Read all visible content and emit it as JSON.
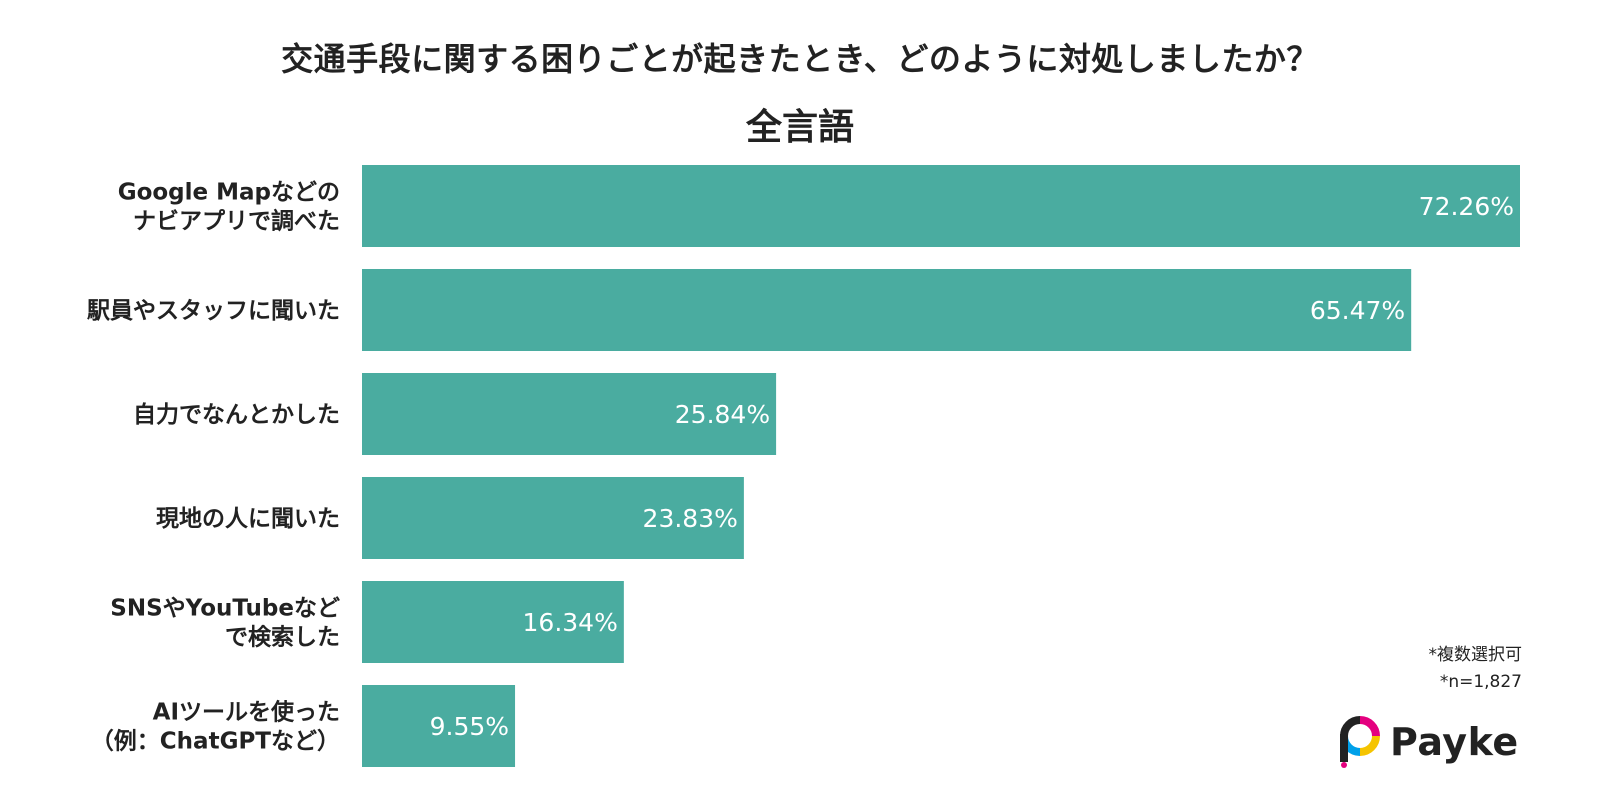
{
  "title": "交通手段に関する困りごとが起きたとき、どのように対処しましたか？",
  "subtitle": "全言語",
  "notes": {
    "multi": "*複数選択可",
    "n": "*n=1,827"
  },
  "brand": {
    "name": "Payke",
    "icon": "payke-logo-icon"
  },
  "colors": {
    "bar": "#4aaca0",
    "value_text": "#ffffff",
    "text": "#222222"
  },
  "chart_data": {
    "type": "bar",
    "orientation": "horizontal",
    "categories": [
      [
        "Google Mapなどの",
        "ナビアプリで調べた"
      ],
      [
        "駅員やスタッフに聞いた"
      ],
      [
        "自力でなんとかした"
      ],
      [
        "現地の人に聞いた"
      ],
      [
        "SNSやYouTubeなど",
        "で検索した"
      ],
      [
        "AIツールを使った",
        "（例：ChatGPTなど）"
      ]
    ],
    "values": [
      72.26,
      65.47,
      25.84,
      23.83,
      16.34,
      9.55
    ],
    "value_labels": [
      "72.26%",
      "65.47%",
      "25.84%",
      "23.83%",
      "16.34%",
      "9.55%"
    ],
    "xlim": [
      0,
      72.26
    ],
    "grid": false,
    "legend": "none"
  }
}
